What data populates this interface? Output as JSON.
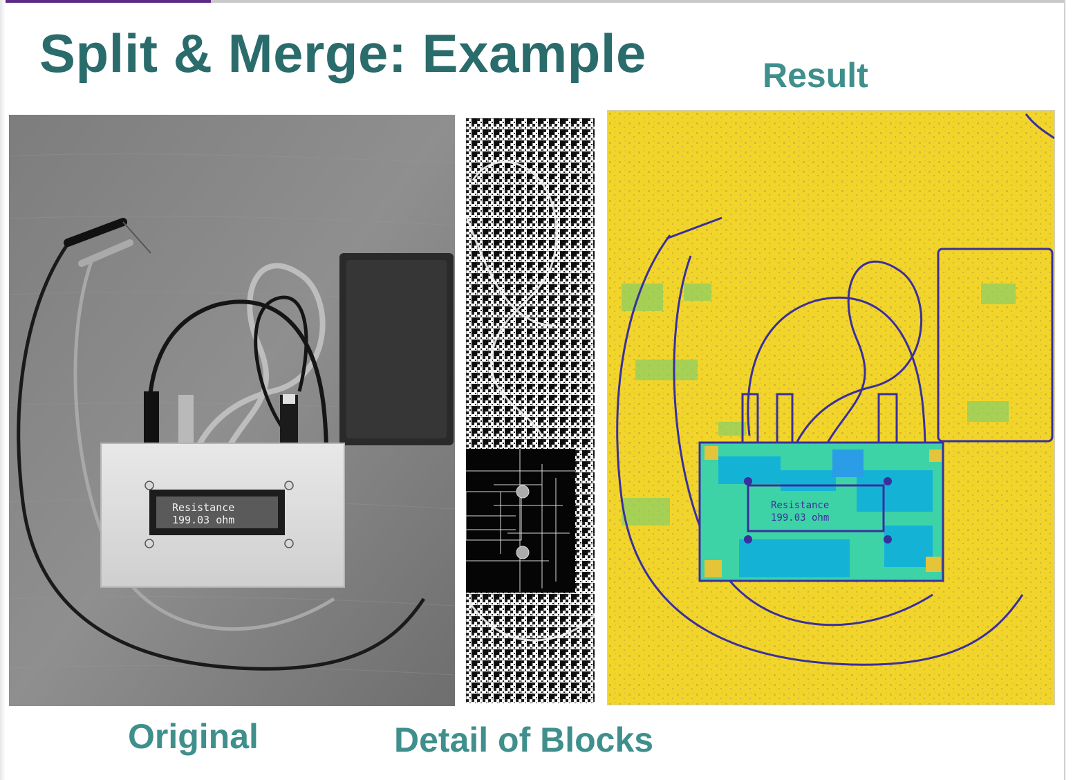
{
  "slide": {
    "title": "Split & Merge: Example",
    "labels": {
      "result": "Result",
      "original": "Original",
      "detail": "Detail of Blocks"
    }
  },
  "display": {
    "line1": "Resistance",
    "line2": "199.03  ohm"
  },
  "colors": {
    "title": "#2a6b6b",
    "label": "#3f8f8c",
    "accent": "#5b2a86",
    "result_background": "#f2d52a",
    "result_edges": "#3a2f9e",
    "result_box_teal": "#3ed3a6",
    "result_box_cyan": "#14b3d6"
  }
}
